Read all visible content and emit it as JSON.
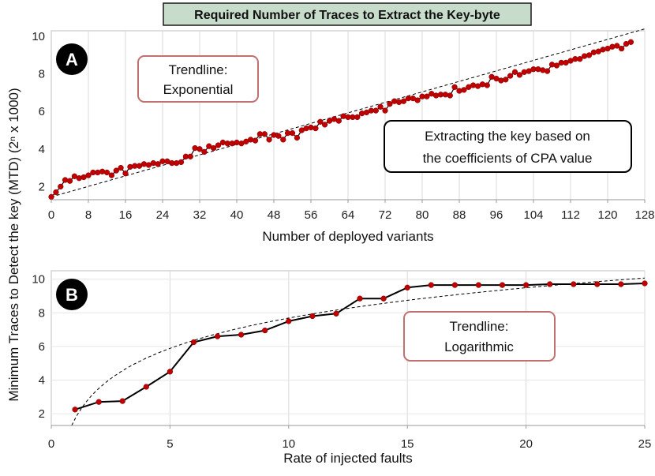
{
  "figure_title": "Required Number of Traces to Extract the Key-byte",
  "shared_ylabel": "Minimum Traces to Detect the key (MTD) (2ⁿ x 1000)",
  "panels": {
    "a": {
      "badge": "A",
      "trend_label_line1": "Trendline:",
      "trend_label_line2": "Exponential",
      "note_line1": "Extracting the key based on",
      "note_line2": "the coefficients of CPA value"
    },
    "b": {
      "badge": "B",
      "trend_label_line1": "Trendline:",
      "trend_label_line2": "Logarithmic"
    }
  },
  "colors": {
    "marker": "#c00000",
    "line": "#000000",
    "title_bg": "#c7dccb",
    "label_box_border": "#c0706f",
    "grid": "#d9d9d9"
  },
  "chart_data": [
    {
      "type": "line",
      "title": "Required Number of Traces to Extract the Key-byte",
      "xlabel": "Number of deployed variants",
      "ylabel": "Minimum Traces to Detect the key (MTD) (2ⁿ x 1000)",
      "xlim": [
        0,
        128
      ],
      "ylim": [
        1.3,
        10.3
      ],
      "xticks": [
        0,
        8,
        16,
        24,
        32,
        40,
        48,
        56,
        64,
        72,
        80,
        88,
        96,
        104,
        112,
        120,
        128
      ],
      "yticks": [
        2,
        4,
        6,
        8,
        10
      ],
      "grid": true,
      "series": [
        {
          "name": "MTD",
          "x": [
            0,
            1,
            2,
            3,
            4,
            5,
            6,
            7,
            8,
            9,
            10,
            11,
            12,
            13,
            14,
            15,
            16,
            17,
            18,
            19,
            20,
            21,
            22,
            23,
            24,
            25,
            26,
            27,
            28,
            29,
            30,
            31,
            32,
            33,
            34,
            35,
            36,
            37,
            38,
            39,
            40,
            41,
            42,
            43,
            44,
            45,
            46,
            47,
            48,
            49,
            50,
            51,
            52,
            53,
            54,
            55,
            56,
            57,
            58,
            59,
            60,
            61,
            62,
            63,
            64,
            65,
            66,
            67,
            68,
            69,
            70,
            71,
            72,
            73,
            74,
            75,
            76,
            77,
            78,
            79,
            80,
            81,
            82,
            83,
            84,
            85,
            86,
            87,
            88,
            89,
            90,
            91,
            92,
            93,
            94,
            95,
            96,
            97,
            98,
            99,
            100,
            101,
            102,
            103,
            104,
            105,
            106,
            107,
            108,
            109,
            110,
            111,
            112,
            113,
            114,
            115,
            116,
            117,
            118,
            119,
            120,
            121,
            122,
            123,
            124,
            125
          ],
          "values": [
            1.45,
            1.7,
            2.0,
            2.35,
            2.3,
            2.55,
            2.45,
            2.5,
            2.6,
            2.75,
            2.75,
            2.8,
            2.75,
            2.6,
            2.85,
            3.0,
            2.7,
            3.05,
            3.1,
            3.1,
            3.2,
            3.15,
            3.25,
            3.2,
            3.35,
            3.35,
            3.25,
            3.25,
            3.3,
            3.6,
            3.6,
            4.05,
            4.0,
            3.85,
            4.15,
            4.05,
            4.2,
            4.35,
            4.3,
            4.3,
            4.35,
            4.3,
            4.4,
            4.5,
            4.45,
            4.8,
            4.8,
            4.5,
            4.75,
            4.7,
            4.5,
            4.85,
            4.85,
            4.6,
            5.0,
            5.1,
            5.15,
            5.1,
            5.45,
            5.3,
            5.5,
            5.6,
            5.5,
            5.75,
            5.7,
            5.7,
            5.7,
            5.9,
            5.95,
            6.05,
            6.05,
            6.25,
            6.05,
            6.4,
            6.55,
            6.5,
            6.55,
            6.7,
            6.7,
            6.6,
            6.8,
            6.8,
            6.95,
            6.85,
            6.9,
            6.9,
            6.85,
            7.3,
            7.1,
            7.15,
            7.3,
            7.4,
            7.35,
            7.45,
            7.4,
            7.85,
            7.75,
            7.65,
            7.7,
            7.9,
            8.1,
            7.95,
            8.1,
            8.15,
            8.25,
            8.25,
            8.2,
            8.15,
            8.5,
            8.45,
            8.6,
            8.6,
            8.7,
            8.8,
            8.8,
            8.95,
            9.0,
            9.15,
            9.2,
            9.3,
            9.35,
            9.45,
            9.5,
            9.35,
            9.6,
            9.7
          ]
        },
        {
          "name": "Trendline: Exponential",
          "style": "dashed",
          "x": [
            0,
            128
          ],
          "values": [
            1.45,
            10.4
          ]
        }
      ]
    },
    {
      "type": "line",
      "xlabel": "Rate of injected faults",
      "ylabel": "Minimum Traces to Detect the key (MTD) (2ⁿ x 1000)",
      "xlim": [
        0,
        25
      ],
      "ylim": [
        1.3,
        10.5
      ],
      "xticks": [
        0,
        5,
        10,
        15,
        20,
        25
      ],
      "yticks": [
        2,
        4,
        6,
        8,
        10
      ],
      "grid": true,
      "series": [
        {
          "name": "MTD",
          "x": [
            1,
            2,
            3,
            4,
            5,
            6,
            7,
            8,
            9,
            10,
            11,
            12,
            13,
            14,
            15,
            16,
            17,
            18,
            19,
            20,
            21,
            22,
            23,
            24,
            25
          ],
          "values": [
            2.25,
            2.7,
            2.75,
            3.6,
            4.5,
            6.25,
            6.6,
            6.7,
            6.95,
            7.5,
            7.8,
            7.95,
            8.85,
            8.85,
            9.5,
            9.65,
            9.65,
            9.65,
            9.65,
            9.65,
            9.7,
            9.7,
            9.7,
            9.7,
            9.75
          ]
        },
        {
          "name": "Trendline: Logarithmic",
          "style": "dashed",
          "model": "y = a + b*ln(x)",
          "a": 1.7,
          "b": 2.6
        }
      ]
    }
  ]
}
